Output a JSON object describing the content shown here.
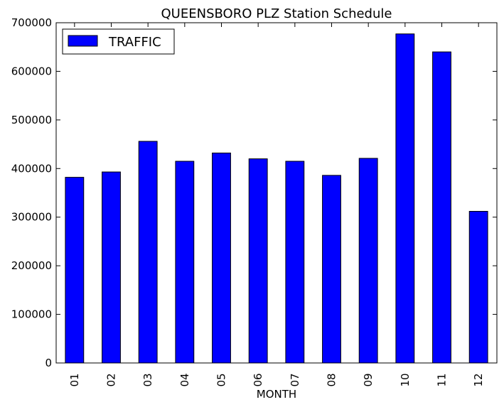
{
  "chart_data": {
    "type": "bar",
    "title": "QUEENSBORO PLZ Station Schedule",
    "xlabel": "MONTH",
    "ylabel": "",
    "categories": [
      "01",
      "02",
      "03",
      "04",
      "05",
      "06",
      "07",
      "08",
      "09",
      "10",
      "11",
      "12"
    ],
    "series": [
      {
        "name": "TRAFFIC",
        "color": "#0000ff",
        "values": [
          382000,
          393000,
          456000,
          415000,
          432000,
          420000,
          415000,
          386000,
          421000,
          677000,
          640000,
          312000
        ]
      }
    ],
    "ylim": [
      0,
      700000
    ],
    "yticks": [
      0,
      100000,
      200000,
      300000,
      400000,
      500000,
      600000,
      700000
    ],
    "ytick_labels": [
      "0",
      "100000",
      "200000",
      "300000",
      "400000",
      "500000",
      "600000",
      "700000"
    ],
    "grid": false,
    "legend_position": "top-left"
  }
}
